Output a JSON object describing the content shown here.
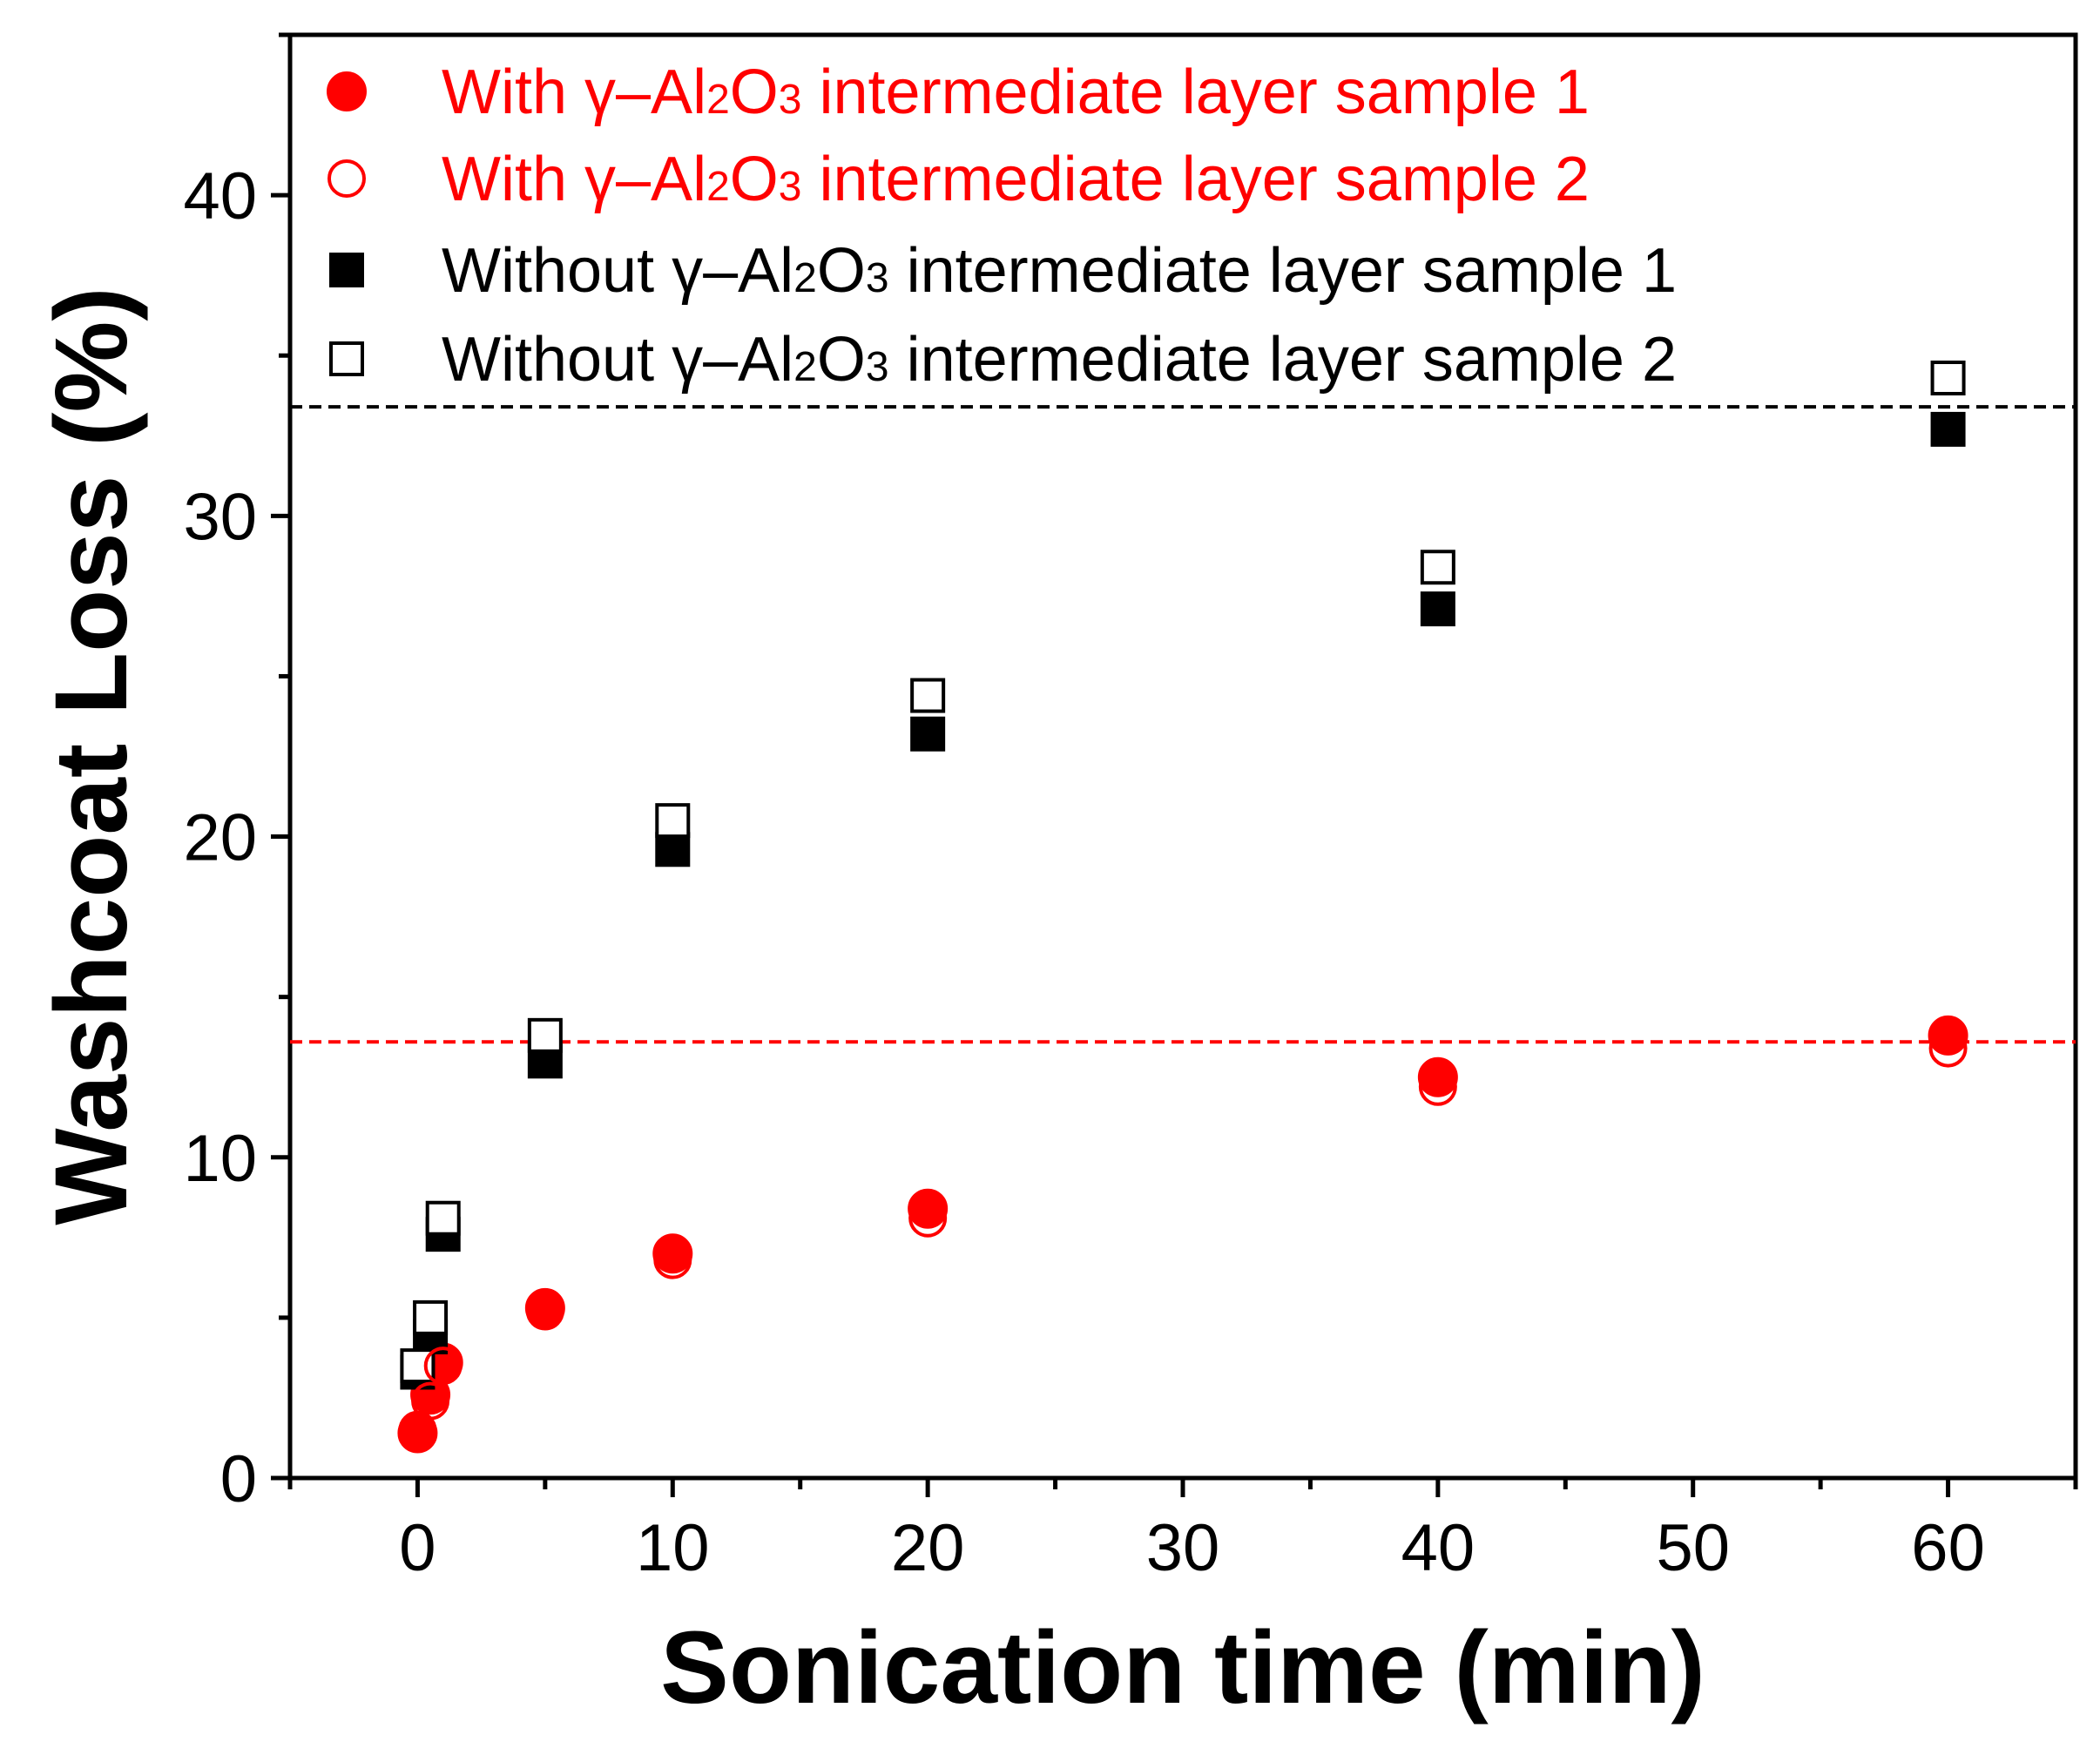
{
  "chart_data": {
    "type": "scatter",
    "xlabel": "Sonication time (min)",
    "ylabel": "Washcoat Loss (%)",
    "xlim": [
      -5,
      65
    ],
    "ylim": [
      0,
      45
    ],
    "xticks": [
      0,
      10,
      20,
      30,
      40,
      50,
      60
    ],
    "yticks": [
      0,
      10,
      20,
      30,
      40
    ],
    "x_tick_labels": [
      "0",
      "10",
      "20",
      "30",
      "40",
      "50",
      "60"
    ],
    "y_tick_labels": [
      "0",
      "10",
      "20",
      "30",
      "40"
    ],
    "grid": false,
    "legend_position": "top-left",
    "series": [
      {
        "name": "With γ–Al2O3 intermediate layer sample 1",
        "legend_prefix": "With γ–Al",
        "legend_sub1": "2",
        "legend_mid": "O",
        "legend_sub2": "3",
        "legend_suffix": " intermediate layer sample 1",
        "marker": "circle-filled",
        "color": "#ff0000",
        "x": [
          0,
          0.5,
          1,
          5,
          10,
          20,
          40,
          60
        ],
        "y": [
          1.4,
          2.6,
          3.6,
          5.3,
          7.0,
          8.4,
          12.5,
          13.8
        ]
      },
      {
        "name": "With γ–Al2O3 intermediate layer sample 2",
        "legend_prefix": "With γ–Al",
        "legend_sub1": "2",
        "legend_mid": "O",
        "legend_sub2": "3",
        "legend_suffix": " intermediate layer sample 2",
        "marker": "circle-open",
        "color": "#ff0000",
        "x": [
          0,
          0.5,
          1,
          5,
          10,
          20,
          40,
          60
        ],
        "y": [
          1.5,
          2.4,
          3.5,
          5.2,
          6.8,
          8.1,
          12.2,
          13.4
        ]
      },
      {
        "name": "Without γ–Al2O3 intermediate layer sample 1",
        "legend_prefix": "Without γ–Al",
        "legend_sub1": "2",
        "legend_mid": "O",
        "legend_sub2": "3",
        "legend_suffix": " intermediate layer sample 1",
        "marker": "square-filled",
        "color": "#000000",
        "x": [
          0,
          0.5,
          1,
          5,
          10,
          20,
          40,
          60
        ],
        "y": [
          3.3,
          4.4,
          7.6,
          13.0,
          19.6,
          23.2,
          27.1,
          32.7
        ]
      },
      {
        "name": "Without γ–Al2O3 intermediate layer sample 2",
        "legend_prefix": "Without γ–Al",
        "legend_sub1": "2",
        "legend_mid": "O",
        "legend_sub2": "3",
        "legend_suffix": " intermediate layer sample 2",
        "marker": "square-open",
        "color": "#000000",
        "x": [
          0,
          0.5,
          1,
          5,
          10,
          20,
          40,
          60
        ],
        "y": [
          3.5,
          5.0,
          8.1,
          13.8,
          20.5,
          24.4,
          28.4,
          34.3
        ]
      }
    ],
    "reference_lines": [
      {
        "name": "plateau-without-layer",
        "y": 33.4,
        "color": "#000000",
        "style": "dashed"
      },
      {
        "name": "plateau-with-layer",
        "y": 13.6,
        "color": "#ff0000",
        "style": "dashed"
      }
    ]
  }
}
